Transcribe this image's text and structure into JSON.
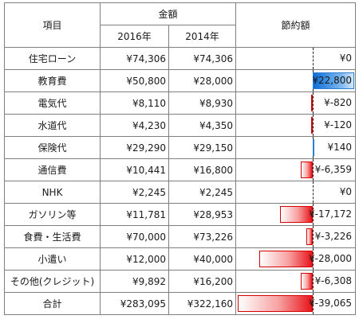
{
  "headers": {
    "item": "項目",
    "amount_group": "金額",
    "year_a": "2016年",
    "year_b": "2014年",
    "savings": "節約額"
  },
  "max_abs_savings": 39065,
  "rows": [
    {
      "item": "住宅ローン",
      "y2016": "¥74,306",
      "y2014": "¥74,306",
      "savings": "¥0",
      "savings_value": 0
    },
    {
      "item": "教育費",
      "y2016": "¥50,800",
      "y2014": "¥28,000",
      "savings": "¥22,800",
      "savings_value": 22800
    },
    {
      "item": "電気代",
      "y2016": "¥8,110",
      "y2014": "¥8,930",
      "savings": "¥-820",
      "savings_value": -820
    },
    {
      "item": "水道代",
      "y2016": "¥4,230",
      "y2014": "¥4,350",
      "savings": "¥-120",
      "savings_value": -120
    },
    {
      "item": "保険代",
      "y2016": "¥29,290",
      "y2014": "¥29,150",
      "savings": "¥140",
      "savings_value": 140
    },
    {
      "item": "通信費",
      "y2016": "¥10,441",
      "y2014": "¥16,800",
      "savings": "¥-6,359",
      "savings_value": -6359
    },
    {
      "item": "NHK",
      "y2016": "¥2,245",
      "y2014": "¥2,245",
      "savings": "¥0",
      "savings_value": 0
    },
    {
      "item": "ガソリン等",
      "y2016": "¥11,781",
      "y2014": "¥28,953",
      "savings": "¥-17,172",
      "savings_value": -17172
    },
    {
      "item": "食費・生活費",
      "y2016": "¥70,000",
      "y2014": "¥73,226",
      "savings": "¥-3,226",
      "savings_value": -3226
    },
    {
      "item": "小遣い",
      "y2016": "¥12,000",
      "y2014": "¥40,000",
      "savings": "¥-28,000",
      "savings_value": -28000
    },
    {
      "item": "その他(クレジット)",
      "y2016": "¥9,892",
      "y2014": "¥16,200",
      "savings": "¥-6,308",
      "savings_value": -6308
    },
    {
      "item": "合計",
      "y2016": "¥283,095",
      "y2014": "¥322,160",
      "savings": "¥-39,065",
      "savings_value": -39065
    }
  ]
}
